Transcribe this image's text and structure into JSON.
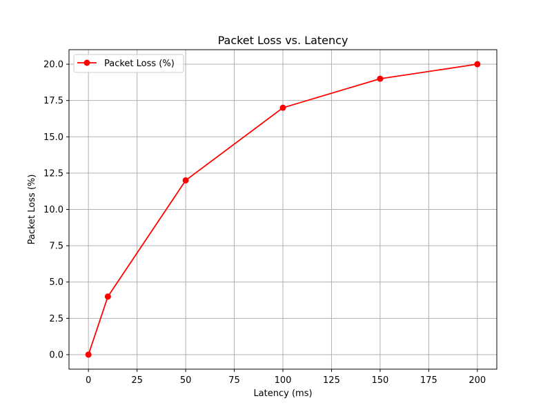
{
  "chart_data": {
    "type": "line",
    "title": "Packet Loss vs. Latency",
    "xlabel": "Latency (ms)",
    "ylabel": "Packet Loss (%)",
    "x": [
      0,
      10,
      50,
      100,
      150,
      200
    ],
    "series": [
      {
        "name": "Packet Loss (%)",
        "values": [
          0,
          4,
          12,
          17,
          19,
          20
        ],
        "color": "#ff0000",
        "marker": "circle"
      }
    ],
    "xlim": [
      -10,
      210
    ],
    "ylim": [
      -1,
      21
    ],
    "xticks": [
      0,
      25,
      50,
      75,
      100,
      125,
      150,
      175,
      200
    ],
    "yticks": [
      0.0,
      2.5,
      5.0,
      7.5,
      10.0,
      12.5,
      15.0,
      17.5,
      20.0
    ],
    "xtick_labels": [
      "0",
      "25",
      "50",
      "75",
      "100",
      "125",
      "150",
      "175",
      "200"
    ],
    "ytick_labels": [
      "0.0",
      "2.5",
      "5.0",
      "7.5",
      "10.0",
      "12.5",
      "15.0",
      "17.5",
      "20.0"
    ],
    "grid": true,
    "grid_color": "#b0b0b0",
    "legend_placement": "top-left"
  }
}
